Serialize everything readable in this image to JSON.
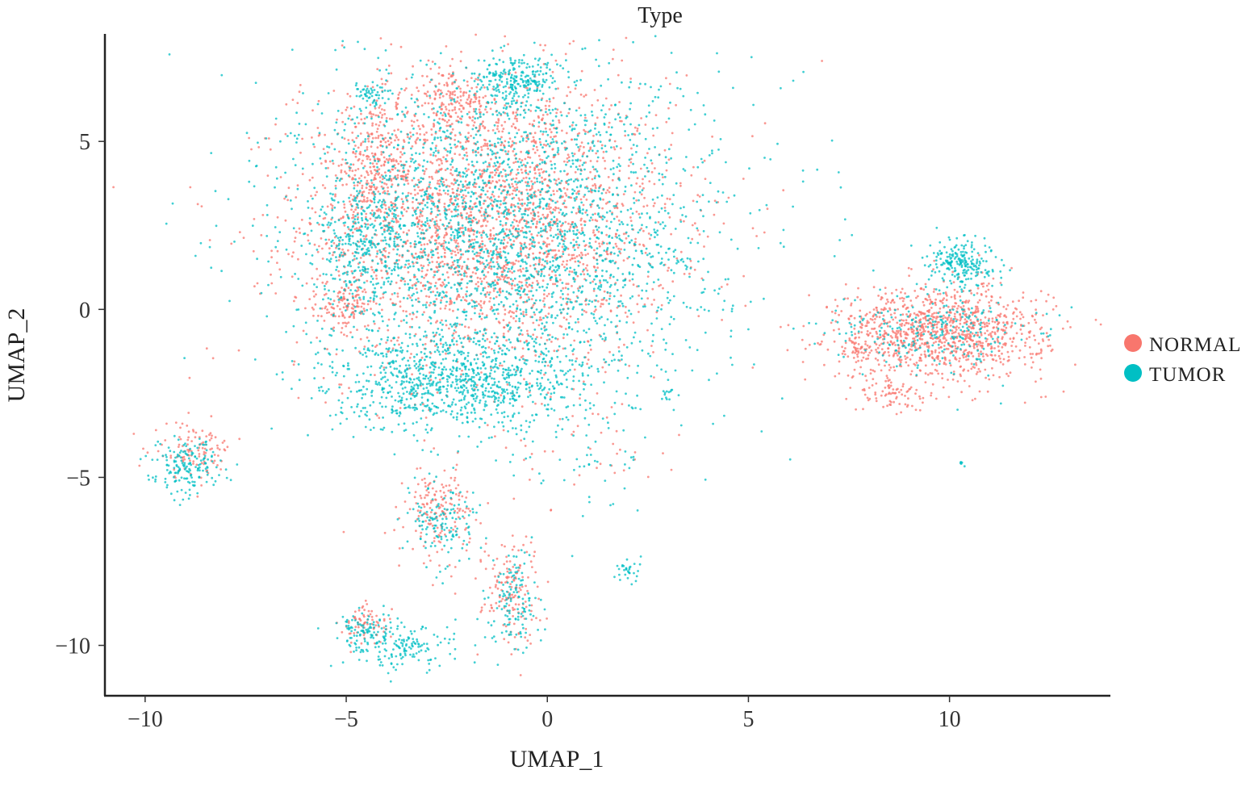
{
  "chart_data": {
    "type": "scatter",
    "title": "Type",
    "xlabel": "UMAP_1",
    "ylabel": "UMAP_2",
    "xlim": [
      -11,
      14
    ],
    "ylim": [
      -11.5,
      8.2
    ],
    "xticks": [
      {
        "value": -10,
        "label": "−10"
      },
      {
        "value": -5,
        "label": "−5"
      },
      {
        "value": 0,
        "label": "0"
      },
      {
        "value": 5,
        "label": "5"
      },
      {
        "value": 10,
        "label": "10"
      }
    ],
    "yticks": [
      {
        "value": 5,
        "label": "5"
      },
      {
        "value": 0,
        "label": "0"
      },
      {
        "value": -5,
        "label": "−5"
      },
      {
        "value": -10,
        "label": "−10"
      }
    ],
    "grid": false,
    "legend": "right",
    "series": [
      {
        "name": "NORMAL",
        "color": "#F8766D",
        "clusters": [
          {
            "cx": -1.5,
            "cy": 2.6,
            "sx": 2.3,
            "sy": 2.2,
            "n": 2600
          },
          {
            "cx": -4.2,
            "cy": 4.4,
            "sx": 0.6,
            "sy": 0.9,
            "n": 260
          },
          {
            "cx": -2.3,
            "cy": 6.2,
            "sx": 0.4,
            "sy": 0.4,
            "n": 130
          },
          {
            "cx": -5.0,
            "cy": 0.1,
            "sx": 0.3,
            "sy": 0.3,
            "n": 110
          },
          {
            "cx": -8.8,
            "cy": -4.2,
            "sx": 0.5,
            "sy": 0.4,
            "n": 110
          },
          {
            "cx": -2.7,
            "cy": -6.0,
            "sx": 0.4,
            "sy": 0.7,
            "n": 170
          },
          {
            "cx": -0.9,
            "cy": -8.3,
            "sx": 0.35,
            "sy": 0.8,
            "n": 150
          },
          {
            "cx": -4.5,
            "cy": -9.4,
            "sx": 0.3,
            "sy": 0.3,
            "n": 70
          },
          {
            "cx": 9.8,
            "cy": -0.7,
            "sx": 1.3,
            "sy": 0.7,
            "n": 1100
          },
          {
            "cx": 7.6,
            "cy": -1.2,
            "sx": 0.2,
            "sy": 0.15,
            "n": 40
          },
          {
            "cx": 8.6,
            "cy": -2.6,
            "sx": 0.4,
            "sy": 0.3,
            "n": 70
          },
          {
            "cx": 1.0,
            "cy": -4.0,
            "sx": 1.2,
            "sy": 1.0,
            "n": 40
          }
        ]
      },
      {
        "name": "TUMOR",
        "color": "#00BFC4",
        "clusters": [
          {
            "cx": -1.0,
            "cy": 2.4,
            "sx": 2.6,
            "sy": 2.4,
            "n": 2700
          },
          {
            "cx": -0.7,
            "cy": 6.8,
            "sx": 0.5,
            "sy": 0.35,
            "n": 220
          },
          {
            "cx": -4.4,
            "cy": 6.4,
            "sx": 0.25,
            "sy": 0.2,
            "n": 50
          },
          {
            "cx": -4.6,
            "cy": 2.0,
            "sx": 0.5,
            "sy": 0.9,
            "n": 250
          },
          {
            "cx": -2.2,
            "cy": -2.2,
            "sx": 1.6,
            "sy": 0.7,
            "n": 900
          },
          {
            "cx": -9.0,
            "cy": -4.7,
            "sx": 0.45,
            "sy": 0.4,
            "n": 170
          },
          {
            "cx": -2.6,
            "cy": -6.3,
            "sx": 0.4,
            "sy": 0.6,
            "n": 130
          },
          {
            "cx": -0.8,
            "cy": -8.7,
            "sx": 0.3,
            "sy": 0.8,
            "n": 130
          },
          {
            "cx": -3.6,
            "cy": -10.0,
            "sx": 0.7,
            "sy": 0.35,
            "n": 160
          },
          {
            "cx": -4.5,
            "cy": -9.6,
            "sx": 0.3,
            "sy": 0.3,
            "n": 80
          },
          {
            "cx": 10.3,
            "cy": 1.4,
            "sx": 0.4,
            "sy": 0.35,
            "n": 220
          },
          {
            "cx": 9.7,
            "cy": -0.6,
            "sx": 1.2,
            "sy": 0.6,
            "n": 260
          },
          {
            "cx": 2.0,
            "cy": -7.8,
            "sx": 0.15,
            "sy": 0.2,
            "n": 30
          },
          {
            "cx": 3.0,
            "cy": -2.5,
            "sx": 0.1,
            "sy": 0.1,
            "n": 12
          },
          {
            "cx": 10.3,
            "cy": -4.6,
            "sx": 0.05,
            "sy": 0.05,
            "n": 6
          },
          {
            "cx": 1.0,
            "cy": -4.5,
            "sx": 1.2,
            "sy": 1.0,
            "n": 50
          }
        ]
      }
    ]
  }
}
